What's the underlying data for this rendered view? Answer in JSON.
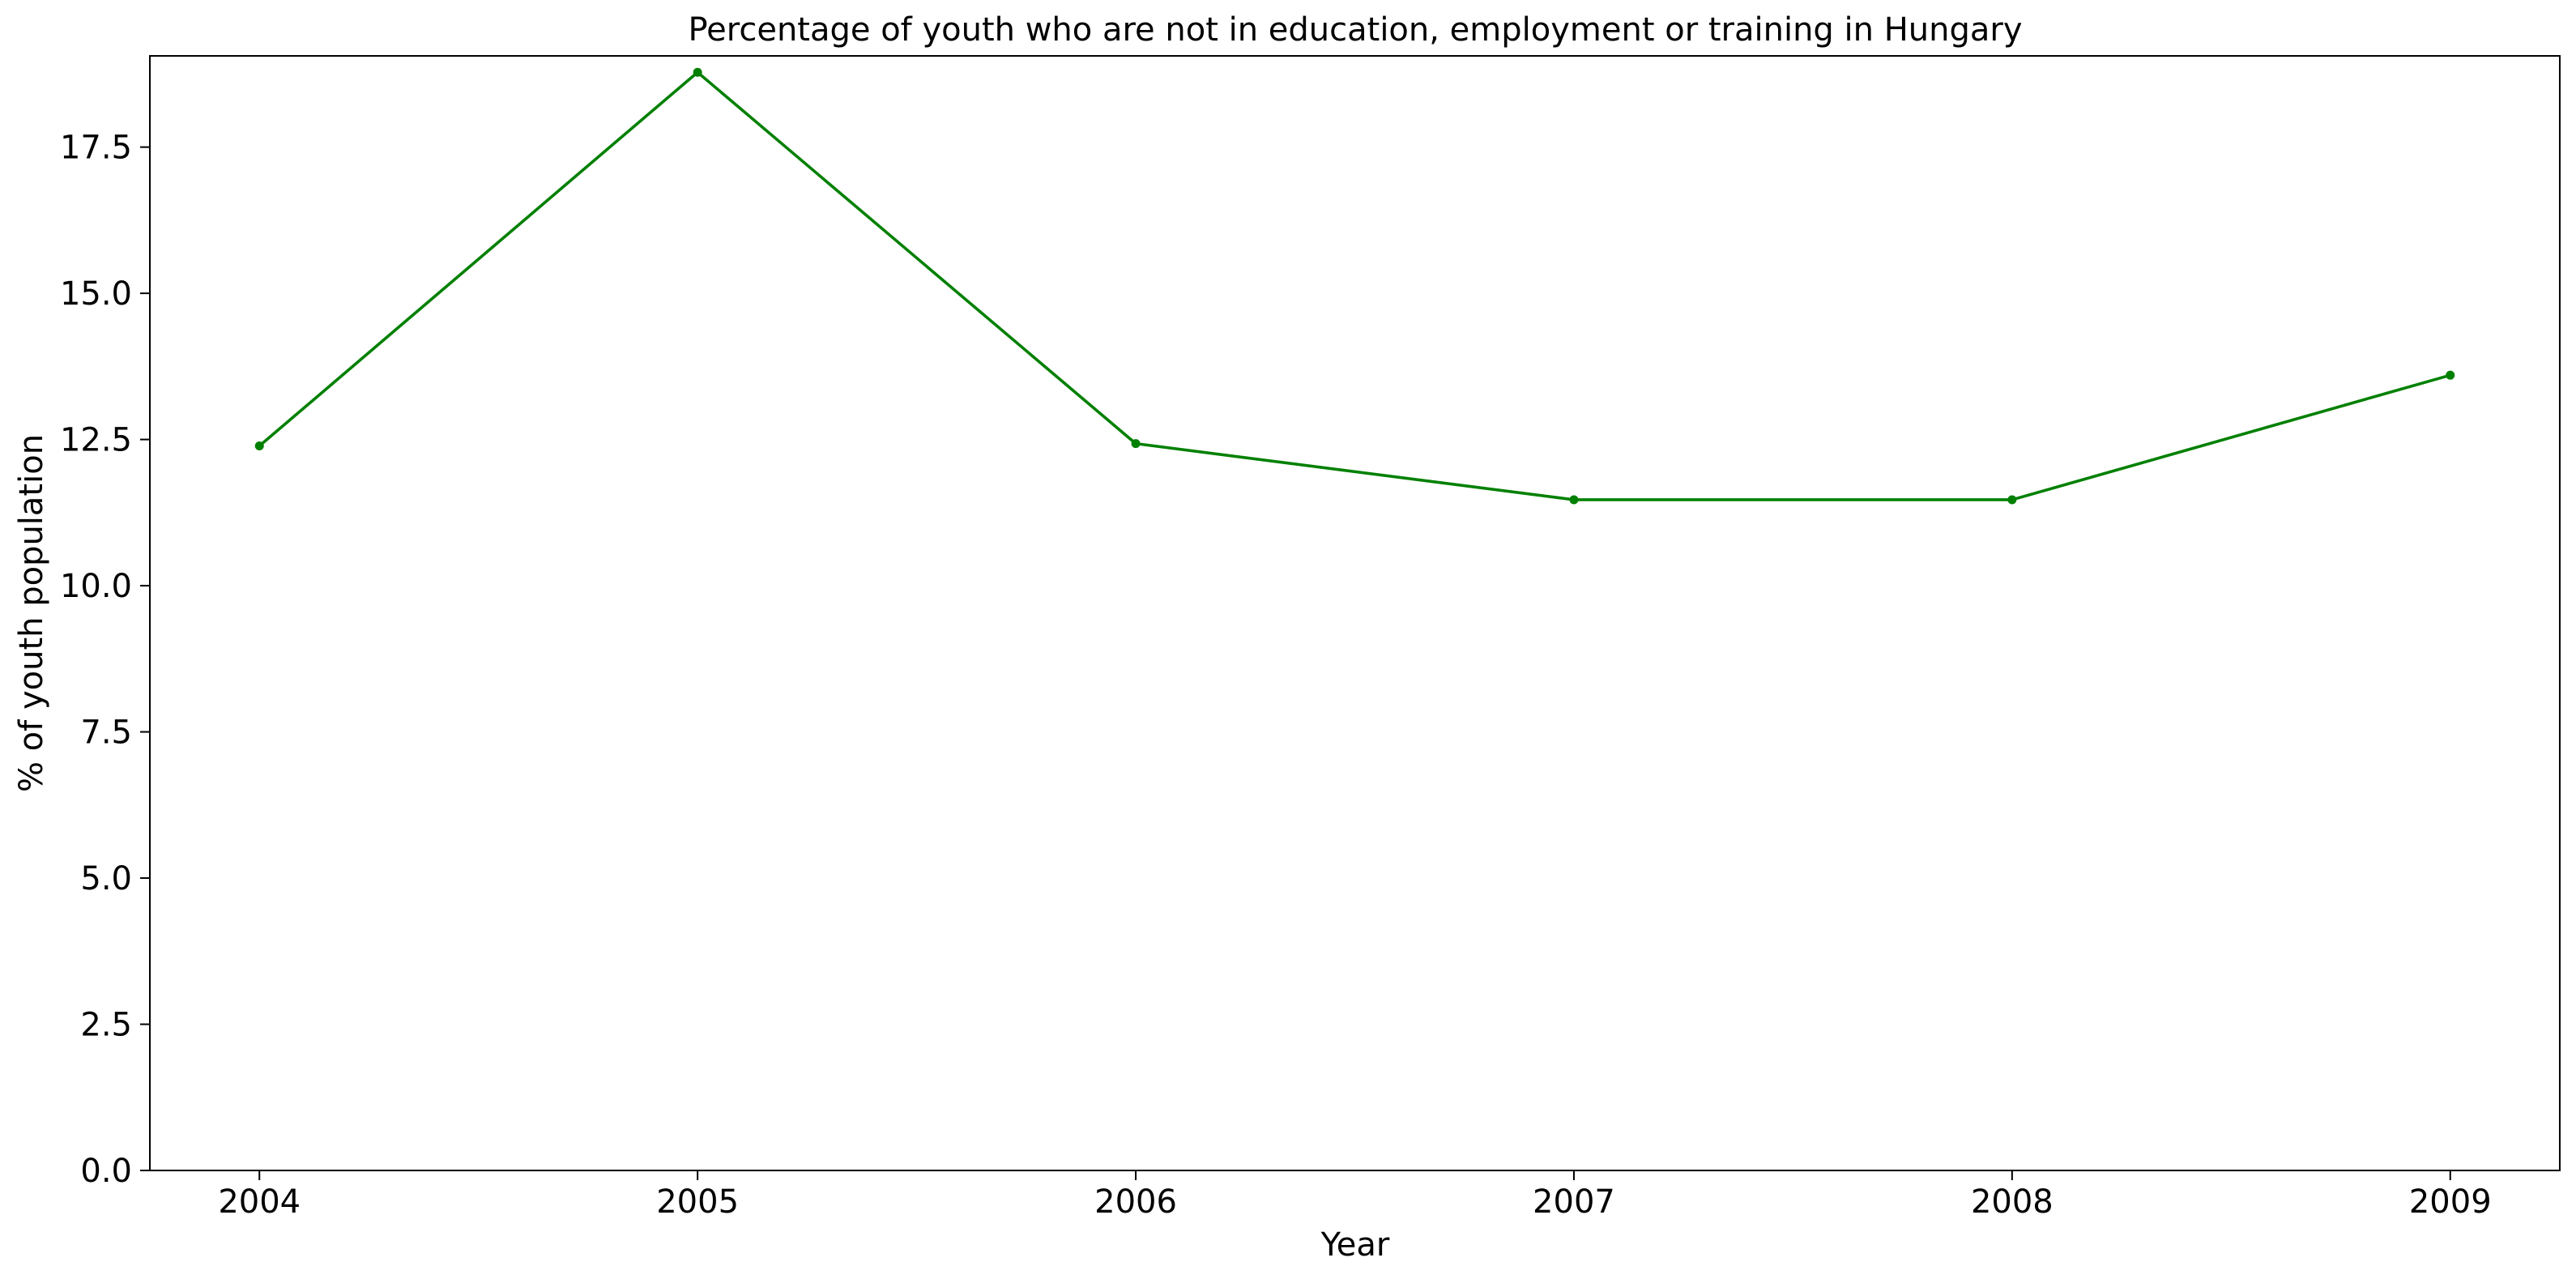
{
  "chart_data": {
    "type": "line",
    "title": "Percentage of youth who are not in education, employment or training in Hungary",
    "xlabel": "Year",
    "ylabel": "% of youth population",
    "x": [
      "2004",
      "2005",
      "2006",
      "2007",
      "2008",
      "2009"
    ],
    "series": [
      {
        "values": [
          12.39,
          18.78,
          12.43,
          11.47,
          11.47,
          13.6
        ],
        "color": "#008000",
        "marker": "circle"
      }
    ],
    "ylim": [
      0,
      19.06
    ],
    "yticks": [
      "0.0",
      "2.5",
      "5.0",
      "7.5",
      "10.0",
      "12.5",
      "15.0",
      "17.5"
    ],
    "xlim": [
      2003.75,
      2009.25
    ],
    "grid": false,
    "legend": "none"
  }
}
